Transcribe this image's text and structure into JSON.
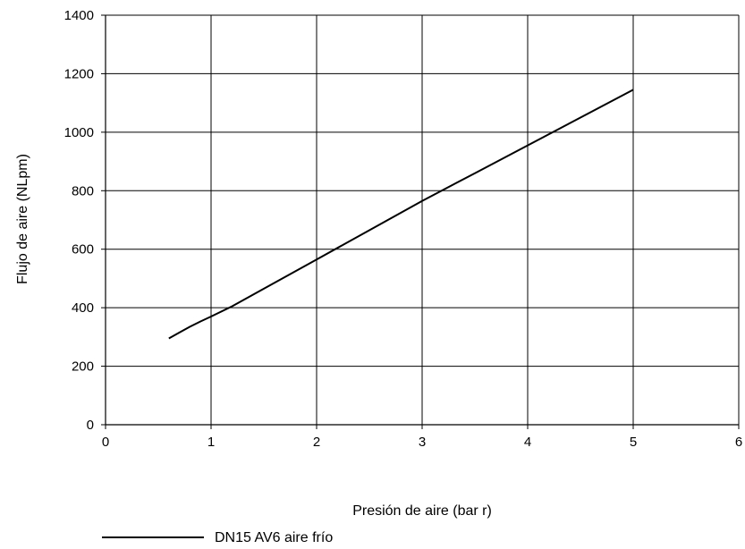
{
  "chart_data": {
    "type": "line",
    "title": "",
    "xlabel": "Presión de aire (bar r)",
    "ylabel": "Flujo de aire (NLpm)",
    "xlim": [
      0,
      6
    ],
    "ylim": [
      0,
      1400
    ],
    "xticks": [
      0,
      1,
      2,
      3,
      4,
      5,
      6
    ],
    "yticks": [
      0,
      200,
      400,
      600,
      800,
      1000,
      1200,
      1400
    ],
    "grid": true,
    "legend_position": "bottom-left",
    "series": [
      {
        "name": "DN15 AV6 aire frío",
        "color": "#000000",
        "x": [
          0.6,
          0.7,
          0.8,
          0.9,
          1.0,
          1.2,
          1.5,
          2.0,
          2.5,
          3.0,
          3.5,
          4.0,
          4.5,
          5.0
        ],
        "y": [
          295,
          315,
          335,
          353,
          370,
          405,
          465,
          565,
          665,
          765,
          860,
          955,
          1050,
          1145
        ]
      }
    ]
  }
}
